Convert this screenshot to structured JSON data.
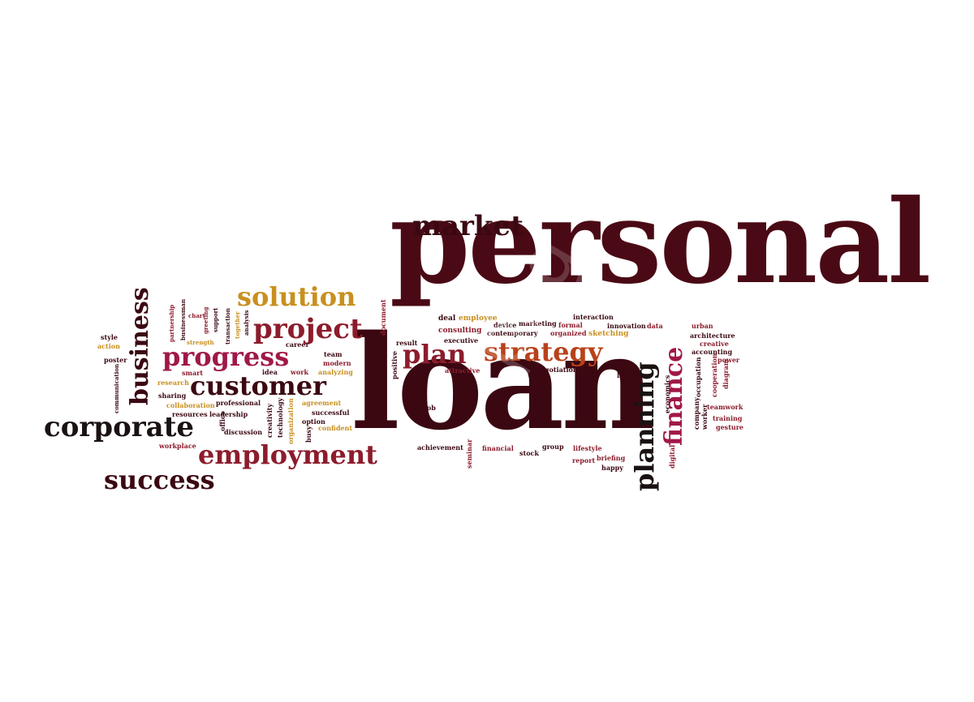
{
  "colors": {
    "dark": "#4a0a15",
    "darker": "#3b0812",
    "crimson": "#8c1c2c",
    "magenta": "#a01848",
    "rust": "#b8421a",
    "gold": "#c8901e",
    "black": "#1a1212"
  },
  "words": [
    {
      "text": "personal",
      "color": "dark"
    },
    {
      "text": "loan",
      "color": "darker"
    },
    {
      "text": "market",
      "color": "darker"
    },
    {
      "text": "solution",
      "color": "gold"
    },
    {
      "text": "project",
      "color": "crimson"
    },
    {
      "text": "progress",
      "color": "magenta"
    },
    {
      "text": "customer",
      "color": "darker"
    },
    {
      "text": "corporate",
      "color": "black"
    },
    {
      "text": "employment",
      "color": "crimson"
    },
    {
      "text": "success",
      "color": "darker"
    },
    {
      "text": "business",
      "color": "darker"
    },
    {
      "text": "plan",
      "color": "crimson"
    },
    {
      "text": "strategy",
      "color": "rust"
    },
    {
      "text": "planning",
      "color": "black"
    },
    {
      "text": "finance",
      "color": "magenta"
    },
    {
      "text": "deal",
      "color": "darker"
    },
    {
      "text": "employee",
      "color": "gold"
    },
    {
      "text": "device",
      "color": "darker"
    },
    {
      "text": "marketing",
      "color": "darker"
    },
    {
      "text": "formal",
      "color": "crimson"
    },
    {
      "text": "interaction",
      "color": "darker"
    },
    {
      "text": "innovation",
      "color": "darker"
    },
    {
      "text": "data",
      "color": "crimson"
    },
    {
      "text": "urban",
      "color": "crimson"
    },
    {
      "text": "consulting",
      "color": "crimson"
    },
    {
      "text": "contemporary",
      "color": "darker"
    },
    {
      "text": "organized",
      "color": "crimson"
    },
    {
      "text": "sketching",
      "color": "gold"
    },
    {
      "text": "architecture",
      "color": "darker"
    },
    {
      "text": "creative",
      "color": "crimson"
    },
    {
      "text": "accounting",
      "color": "darker"
    },
    {
      "text": "power",
      "color": "crimson"
    },
    {
      "text": "result",
      "color": "darker"
    },
    {
      "text": "executive",
      "color": "darker"
    },
    {
      "text": "attractive",
      "color": "crimson"
    },
    {
      "text": "negotiation",
      "color": "darker"
    },
    {
      "text": "life",
      "color": "darker"
    },
    {
      "text": "positive",
      "color": "darker"
    },
    {
      "text": "job",
      "color": "darker"
    },
    {
      "text": "achievement",
      "color": "darker"
    },
    {
      "text": "seminar",
      "color": "crimson"
    },
    {
      "text": "financial",
      "color": "crimson"
    },
    {
      "text": "stock",
      "color": "darker"
    },
    {
      "text": "group",
      "color": "darker"
    },
    {
      "text": "lifestyle",
      "color": "crimson"
    },
    {
      "text": "report",
      "color": "crimson"
    },
    {
      "text": "briefing",
      "color": "crimson"
    },
    {
      "text": "happy",
      "color": "darker"
    },
    {
      "text": "teamwork",
      "color": "crimson"
    },
    {
      "text": "training",
      "color": "crimson"
    },
    {
      "text": "gesture",
      "color": "crimson"
    },
    {
      "text": "economics",
      "color": "darker"
    },
    {
      "text": "digital",
      "color": "crimson"
    },
    {
      "text": "company",
      "color": "darker"
    },
    {
      "text": "worker",
      "color": "darker"
    },
    {
      "text": "occupation",
      "color": "darker"
    },
    {
      "text": "cooperation",
      "color": "crimson"
    },
    {
      "text": "diagram",
      "color": "crimson"
    },
    {
      "text": "document",
      "color": "crimson"
    },
    {
      "text": "career",
      "color": "darker"
    },
    {
      "text": "team",
      "color": "darker"
    },
    {
      "text": "idea",
      "color": "darker"
    },
    {
      "text": "work",
      "color": "crimson"
    },
    {
      "text": "modern",
      "color": "crimson"
    },
    {
      "text": "analyzing",
      "color": "gold"
    },
    {
      "text": "style",
      "color": "darker"
    },
    {
      "text": "action",
      "color": "gold"
    },
    {
      "text": "poster",
      "color": "darker"
    },
    {
      "text": "communication",
      "color": "darker"
    },
    {
      "text": "smart",
      "color": "crimson"
    },
    {
      "text": "research",
      "color": "gold"
    },
    {
      "text": "sharing",
      "color": "darker"
    },
    {
      "text": "collaboration",
      "color": "gold"
    },
    {
      "text": "resources",
      "color": "darker"
    },
    {
      "text": "leadership",
      "color": "darker"
    },
    {
      "text": "professional",
      "color": "darker"
    },
    {
      "text": "agreement",
      "color": "gold"
    },
    {
      "text": "successful",
      "color": "darker"
    },
    {
      "text": "option",
      "color": "darker"
    },
    {
      "text": "confident",
      "color": "gold"
    },
    {
      "text": "discussion",
      "color": "darker"
    },
    {
      "text": "workplace",
      "color": "crimson"
    },
    {
      "text": "office",
      "color": "darker"
    },
    {
      "text": "creativity",
      "color": "darker"
    },
    {
      "text": "technology",
      "color": "darker"
    },
    {
      "text": "organization",
      "color": "gold"
    },
    {
      "text": "busy",
      "color": "darker"
    },
    {
      "text": "partnership",
      "color": "crimson"
    },
    {
      "text": "businessman",
      "color": "darker"
    },
    {
      "text": "chart",
      "color": "crimson"
    },
    {
      "text": "greeting",
      "color": "crimson"
    },
    {
      "text": "support",
      "color": "darker"
    },
    {
      "text": "strength",
      "color": "gold"
    },
    {
      "text": "transaction",
      "color": "darker"
    },
    {
      "text": "together",
      "color": "gold"
    },
    {
      "text": "analysis",
      "color": "darker"
    }
  ]
}
